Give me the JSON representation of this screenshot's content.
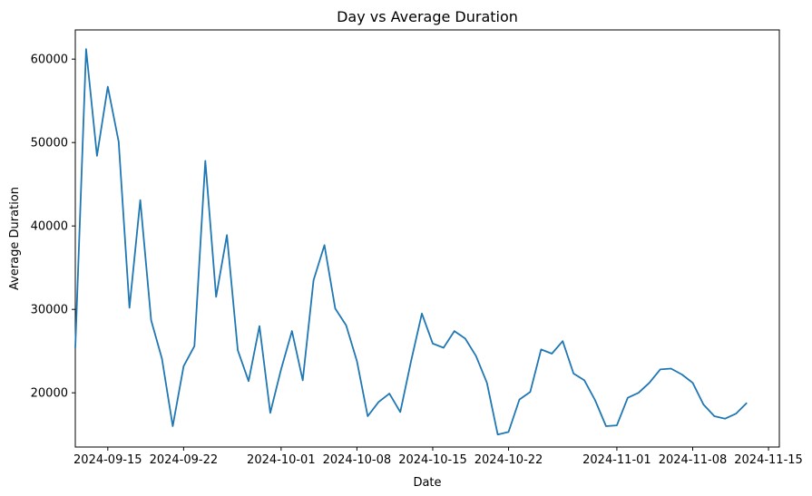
{
  "chart_data": {
    "type": "line",
    "title": "Day vs Average Duration",
    "xlabel": "Date",
    "ylabel": "Average Duration",
    "x_ticks": [
      "2024-09-15",
      "2024-09-22",
      "2024-10-01",
      "2024-10-08",
      "2024-10-15",
      "2024-10-22",
      "2024-11-01",
      "2024-11-08",
      "2024-11-15"
    ],
    "y_ticks": [
      20000,
      30000,
      40000,
      50000,
      60000
    ],
    "xlim": [
      "2024-09-12",
      "2024-11-16"
    ],
    "ylim": [
      13500,
      63500
    ],
    "grid": false,
    "color": "#1f77b4",
    "series": [
      {
        "x": [
          "2024-09-12",
          "2024-09-13",
          "2024-09-14",
          "2024-09-15",
          "2024-09-16",
          "2024-09-17",
          "2024-09-18",
          "2024-09-19",
          "2024-09-20",
          "2024-09-21",
          "2024-09-22",
          "2024-09-23",
          "2024-09-24",
          "2024-09-25",
          "2024-09-26",
          "2024-09-27",
          "2024-09-28",
          "2024-09-29",
          "2024-09-30",
          "2024-10-01",
          "2024-10-02",
          "2024-10-03",
          "2024-10-04",
          "2024-10-05",
          "2024-10-06",
          "2024-10-07",
          "2024-10-08",
          "2024-10-09",
          "2024-10-10",
          "2024-10-11",
          "2024-10-12",
          "2024-10-13",
          "2024-10-14",
          "2024-10-15",
          "2024-10-16",
          "2024-10-17",
          "2024-10-18",
          "2024-10-19",
          "2024-10-20",
          "2024-10-21",
          "2024-10-22",
          "2024-10-23",
          "2024-10-24",
          "2024-10-25",
          "2024-10-26",
          "2024-10-27",
          "2024-10-28",
          "2024-10-29",
          "2024-10-30",
          "2024-10-31",
          "2024-11-01",
          "2024-11-02",
          "2024-11-03",
          "2024-11-04",
          "2024-11-05",
          "2024-11-06",
          "2024-11-07",
          "2024-11-08",
          "2024-11-09",
          "2024-11-10",
          "2024-11-11",
          "2024-11-12",
          "2024-11-13"
        ],
        "values": [
          25400,
          61200,
          48400,
          56700,
          50100,
          30200,
          43100,
          28700,
          24100,
          16000,
          23200,
          25600,
          47800,
          31500,
          38900,
          25100,
          21400,
          28000,
          17600,
          22800,
          27400,
          21500,
          33500,
          37700,
          30100,
          28100,
          23800,
          17200,
          18900,
          19900,
          17700,
          23800,
          29500,
          25900,
          25400,
          27400,
          26500,
          24400,
          21200,
          15000,
          15300,
          19200,
          20100,
          25200,
          24700,
          26200,
          22300,
          21500,
          19100,
          16000,
          16100,
          19400,
          20000,
          21200,
          22800,
          22900,
          22200,
          21200,
          18600,
          17200,
          16900,
          17500,
          18800
        ]
      }
    ]
  }
}
